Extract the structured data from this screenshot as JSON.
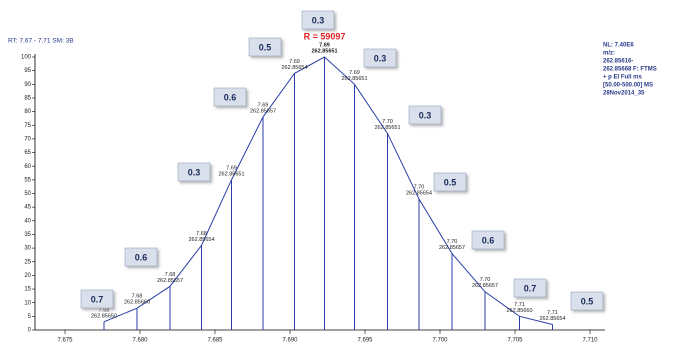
{
  "chart_data": {
    "type": "line",
    "header": "RT: 7.67 - 7.71   SM: 3B",
    "resolution": "R = 59097",
    "info": [
      "NL: 7.40E6",
      "m/z:",
      "262.85616-",
      "262.85668 F: FTMS",
      "+ p EI Full ms",
      "[50.00-500.00]  MS",
      "28Nov2014_35"
    ],
    "x": [
      7.6776,
      7.6798,
      7.682,
      7.6841,
      7.6861,
      7.6882,
      7.6903,
      7.6923,
      7.6943,
      7.6965,
      7.6986,
      7.7008,
      7.703,
      7.7053,
      7.7075
    ],
    "series": [
      {
        "color": "#2b3ea8",
        "values": [
          3,
          8,
          16,
          31,
          55,
          78,
          94,
          100,
          90,
          72,
          48,
          28,
          14,
          5,
          2
        ]
      }
    ],
    "peak_labels": [
      [
        "7.68",
        "262.85650"
      ],
      [
        "7.68",
        "262.85660"
      ],
      [
        "7.68",
        "262.85657"
      ],
      [
        "7.68",
        "262.85654"
      ],
      [
        "7.69",
        "262.85651"
      ],
      [
        "7.69",
        "262.85657"
      ],
      [
        "7.69",
        "262.85654"
      ],
      [
        "7.69",
        "262.85651"
      ],
      [
        "7.69",
        "262.85651"
      ],
      [
        "7.70",
        "262.85651"
      ],
      [
        "7.70",
        "262.85654"
      ],
      [
        "7.70",
        "262.85657"
      ],
      [
        "7.70",
        "262.85657"
      ],
      [
        "7.71",
        "262.85660"
      ],
      [
        "7.71",
        "262.85654"
      ]
    ],
    "boxes": [
      0.7,
      0.6,
      0.3,
      0.6,
      0.5,
      0.3,
      0.3,
      0.3,
      0.5,
      0.6,
      0.7,
      0.5
    ],
    "xlim": [
      7.673,
      7.711
    ],
    "xticks": [
      {
        "value": 7.675,
        "label": "7.675"
      },
      {
        "value": 7.68,
        "label": "7.680"
      },
      {
        "value": 7.685,
        "label": "7.685"
      },
      {
        "value": 7.69,
        "label": "7.690"
      },
      {
        "value": 7.695,
        "label": "7.695"
      },
      {
        "value": 7.7,
        "label": "7.700"
      },
      {
        "value": 7.705,
        "label": "7.705"
      },
      {
        "value": 7.71,
        "label": "7.710"
      }
    ],
    "ylim": [
      0,
      100
    ],
    "yticks": [
      0,
      5,
      10,
      15,
      20,
      25,
      30,
      35,
      40,
      45,
      50,
      55,
      60,
      65,
      70,
      75,
      80,
      85,
      90,
      95,
      100
    ]
  }
}
